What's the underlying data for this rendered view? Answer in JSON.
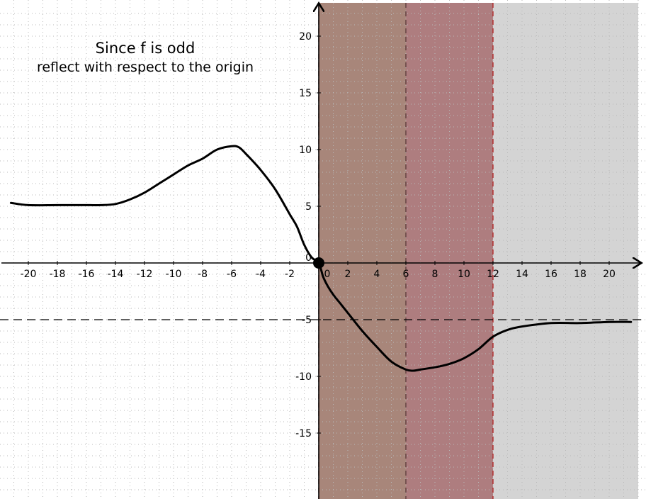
{
  "chart_data": {
    "type": "line",
    "title": "",
    "xlabel": "",
    "ylabel": "",
    "xlim": [
      -21.5,
      22
    ],
    "ylim": [
      -20.5,
      23
    ],
    "grid": true,
    "annotations": [
      "Since f is odd",
      "reflect with respect to the origin"
    ],
    "x_ticks": [
      -20,
      -18,
      -16,
      -14,
      -12,
      -10,
      -8,
      -6,
      -4,
      -2,
      0,
      2,
      4,
      6,
      8,
      10,
      12,
      14,
      16,
      18,
      20
    ],
    "x_tick_labels": [
      "-20",
      "-18",
      "-16",
      "-14",
      "-12",
      "-10",
      "-8",
      "-6",
      "-4",
      "-2",
      "0",
      "2",
      "4",
      "6",
      "8",
      "10",
      "12",
      "14",
      "16",
      "18",
      "20"
    ],
    "y_ticks": [
      20,
      15,
      10,
      5,
      0,
      -5,
      -10,
      -15
    ],
    "y_tick_labels": [
      "20",
      "15",
      "10",
      "5",
      "0",
      "-5",
      "-10",
      "-15"
    ],
    "shaded_regions": [
      {
        "x_from": 0,
        "x_to": 6,
        "color": "#a8867a"
      },
      {
        "x_from": 6,
        "x_to": 12,
        "color": "#ae7d7f"
      },
      {
        "x_from": 12,
        "x_to": 22,
        "color": "#d4d4d4"
      }
    ],
    "vertical_lines": [
      {
        "x": 0,
        "color": "#8b1a1a",
        "style": "dashed"
      },
      {
        "x": 6,
        "color": "#5a3a3a",
        "style": "dashed"
      },
      {
        "x": 12,
        "color": "#b01e1e",
        "style": "dashed"
      }
    ],
    "horizontal_asymptote": {
      "y": -5,
      "style": "dashed"
    },
    "origin_point": {
      "x": 0,
      "y": 0
    },
    "series": [
      {
        "points": [
          [
            -21.2,
            5.3
          ],
          [
            -20,
            5.1
          ],
          [
            -18,
            5.1
          ],
          [
            -16,
            5.1
          ],
          [
            -15,
            5.1
          ],
          [
            -14,
            5.2
          ],
          [
            -13,
            5.6
          ],
          [
            -12,
            6.2
          ],
          [
            -11,
            7.0
          ],
          [
            -10,
            7.8
          ],
          [
            -9,
            8.6
          ],
          [
            -8,
            9.2
          ],
          [
            -7,
            10.0
          ],
          [
            -6,
            10.3
          ],
          [
            -5.5,
            10.2
          ],
          [
            -5,
            9.6
          ],
          [
            -4,
            8.2
          ],
          [
            -3,
            6.5
          ],
          [
            -2,
            4.3
          ],
          [
            -1.5,
            3.2
          ],
          [
            -1,
            1.6
          ],
          [
            -0.5,
            0.5
          ],
          [
            0,
            0
          ],
          [
            0.3,
            -1.2
          ],
          [
            0.6,
            -2.0
          ],
          [
            1,
            -2.8
          ],
          [
            1.5,
            -3.6
          ],
          [
            2,
            -4.4
          ],
          [
            3,
            -6.0
          ],
          [
            4,
            -7.4
          ],
          [
            5,
            -8.7
          ],
          [
            6,
            -9.4
          ],
          [
            6.5,
            -9.5
          ],
          [
            7,
            -9.4
          ],
          [
            8,
            -9.2
          ],
          [
            9,
            -8.9
          ],
          [
            10,
            -8.4
          ],
          [
            11,
            -7.6
          ],
          [
            12,
            -6.5
          ],
          [
            13,
            -5.9
          ],
          [
            14,
            -5.6
          ],
          [
            16,
            -5.3
          ],
          [
            18,
            -5.3
          ],
          [
            20,
            -5.2
          ],
          [
            21.5,
            -5.2
          ]
        ]
      }
    ]
  }
}
